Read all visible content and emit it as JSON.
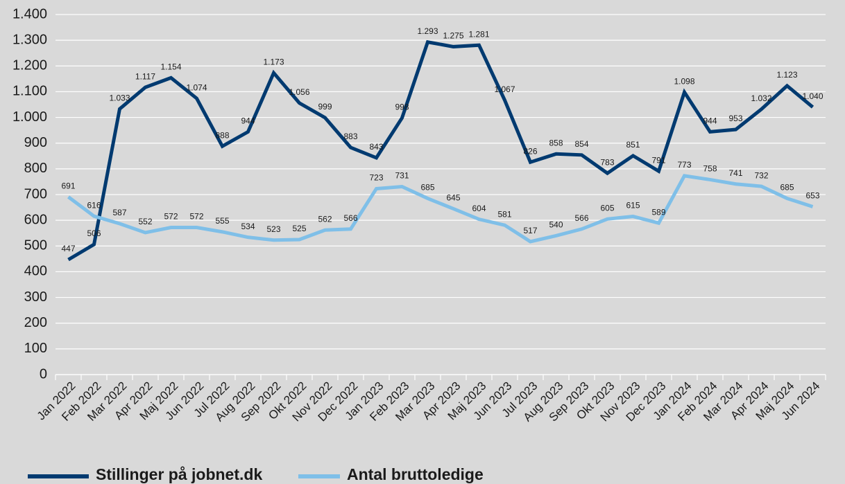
{
  "chart_data": {
    "type": "line",
    "categories": [
      "Jan 2022",
      "Feb 2022",
      "Mar 2022",
      "Apr 2022",
      "Maj 2022",
      "Jun 2022",
      "Jul 2022",
      "Aug 2022",
      "Sep 2022",
      "Okt 2022",
      "Nov 2022",
      "Dec 2022",
      "Jan 2023",
      "Feb 2023",
      "Mar 2023",
      "Apr 2023",
      "Maj 2023",
      "Jun 2023",
      "Jul 2023",
      "Aug 2023",
      "Sep 2023",
      "Okt 2023",
      "Nov 2023",
      "Dec 2023",
      "Jan 2024",
      "Feb 2024",
      "Mar 2024",
      "Apr 2024",
      "Maj 2024",
      "Jun 2024"
    ],
    "series": [
      {
        "name": "Stillinger på jobnet.dk",
        "color": "#003a70",
        "values": [
          447,
          506,
          1033,
          1117,
          1154,
          1074,
          888,
          944,
          1173,
          1056,
          999,
          883,
          843,
          998,
          1293,
          1275,
          1281,
          1067,
          826,
          858,
          854,
          783,
          851,
          791,
          1098,
          944,
          953,
          1032,
          1123,
          1040
        ],
        "value_labels": [
          "447",
          "506",
          "1.033",
          "1.117",
          "1.154",
          "1.074",
          "888",
          "944",
          "1.173",
          "1.056",
          "999",
          "883",
          "843",
          "998",
          "1.293",
          "1.275",
          "1.281",
          "1.067",
          "826",
          "858",
          "854",
          "783",
          "851",
          "791",
          "1.098",
          "944",
          "953",
          "1.032",
          "1.123",
          "1.040"
        ]
      },
      {
        "name": "Antal bruttoledige",
        "color": "#7fbfe8",
        "values": [
          691,
          616,
          587,
          552,
          572,
          572,
          555,
          534,
          523,
          525,
          562,
          566,
          723,
          731,
          685,
          645,
          604,
          581,
          517,
          540,
          566,
          605,
          615,
          589,
          773,
          758,
          741,
          732,
          685,
          653
        ],
        "value_labels": [
          "691",
          "616",
          "587",
          "552",
          "572",
          "572",
          "555",
          "534",
          "523",
          "525",
          "562",
          "566",
          "723",
          "731",
          "685",
          "645",
          "604",
          "581",
          "517",
          "540",
          "566",
          "605",
          "615",
          "589",
          "773",
          "758",
          "741",
          "732",
          "685",
          "653"
        ]
      }
    ],
    "ylim": [
      0,
      1400
    ],
    "yticks": [
      0,
      100,
      200,
      300,
      400,
      500,
      600,
      700,
      800,
      900,
      {
        "value": 1000,
        "label": "1.000"
      },
      {
        "value": 1100,
        "label": "1.100"
      },
      {
        "value": 1200,
        "label": "1.200"
      },
      {
        "value": 1300,
        "label": "1.300"
      },
      {
        "value": 1400,
        "label": "1.400"
      }
    ],
    "grid": true
  }
}
